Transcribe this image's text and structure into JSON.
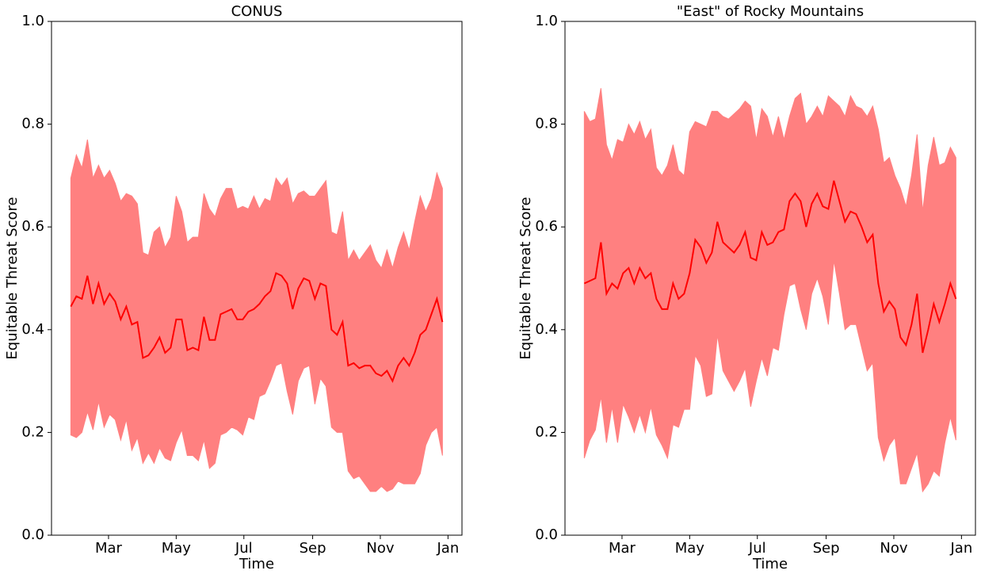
{
  "chart_data": [
    {
      "type": "line",
      "title": "CONUS",
      "xlabel": "Time",
      "ylabel": "Equitable Threat Score",
      "line_color": "#ff0000",
      "band_color": "#ff8080",
      "xlim": [
        8.6,
        378.6
      ],
      "ylim": [
        0,
        1
      ],
      "xticks": [
        {
          "value": 60,
          "label": "Mar"
        },
        {
          "value": 121,
          "label": "May"
        },
        {
          "value": 182,
          "label": "Jul"
        },
        {
          "value": 244,
          "label": "Sep"
        },
        {
          "value": 305,
          "label": "Nov"
        },
        {
          "value": 366,
          "label": "Jan"
        }
      ],
      "yticks": [
        {
          "value": 0,
          "label": "0.0"
        },
        0.2,
        0.4,
        0.6,
        0.8,
        {
          "value": 1,
          "label": "1.0"
        }
      ],
      "x": [
        26,
        31,
        36,
        41,
        46,
        51,
        56,
        61,
        66,
        71,
        76,
        81,
        86,
        91,
        96,
        101,
        106,
        111,
        116,
        121,
        126,
        131,
        136,
        141,
        146,
        151,
        156,
        161,
        166,
        171,
        176,
        181,
        186,
        191,
        196,
        201,
        206,
        211,
        216,
        221,
        226,
        231,
        236,
        241,
        246,
        251,
        256,
        261,
        266,
        271,
        276,
        281,
        286,
        291,
        296,
        301,
        306,
        311,
        316,
        321,
        326,
        331,
        336,
        341,
        346,
        351,
        356,
        361
      ],
      "values": [
        0.445,
        0.465,
        0.46,
        0.505,
        0.45,
        0.49,
        0.45,
        0.47,
        0.455,
        0.42,
        0.445,
        0.41,
        0.415,
        0.345,
        0.35,
        0.365,
        0.385,
        0.355,
        0.365,
        0.42,
        0.42,
        0.36,
        0.365,
        0.36,
        0.425,
        0.38,
        0.38,
        0.43,
        0.435,
        0.44,
        0.42,
        0.42,
        0.435,
        0.44,
        0.45,
        0.465,
        0.475,
        0.51,
        0.505,
        0.49,
        0.44,
        0.48,
        0.5,
        0.495,
        0.46,
        0.49,
        0.485,
        0.4,
        0.39,
        0.415,
        0.33,
        0.335,
        0.325,
        0.33,
        0.33,
        0.315,
        0.31,
        0.32,
        0.3,
        0.33,
        0.345,
        0.33,
        0.355,
        0.39,
        0.4,
        0.43,
        0.46,
        0.415
      ],
      "upper": [
        0.695,
        0.74,
        0.715,
        0.77,
        0.695,
        0.72,
        0.695,
        0.71,
        0.685,
        0.65,
        0.665,
        0.66,
        0.645,
        0.55,
        0.545,
        0.59,
        0.6,
        0.56,
        0.58,
        0.66,
        0.63,
        0.57,
        0.58,
        0.58,
        0.665,
        0.635,
        0.62,
        0.655,
        0.675,
        0.675,
        0.635,
        0.64,
        0.635,
        0.66,
        0.635,
        0.655,
        0.65,
        0.695,
        0.68,
        0.695,
        0.645,
        0.665,
        0.67,
        0.66,
        0.66,
        0.675,
        0.69,
        0.59,
        0.585,
        0.63,
        0.535,
        0.555,
        0.535,
        0.55,
        0.565,
        0.535,
        0.52,
        0.555,
        0.52,
        0.56,
        0.59,
        0.555,
        0.61,
        0.66,
        0.63,
        0.655,
        0.705,
        0.675
      ],
      "lower": [
        0.195,
        0.19,
        0.2,
        0.24,
        0.205,
        0.26,
        0.21,
        0.235,
        0.225,
        0.185,
        0.225,
        0.165,
        0.19,
        0.14,
        0.16,
        0.14,
        0.17,
        0.15,
        0.145,
        0.18,
        0.205,
        0.155,
        0.155,
        0.145,
        0.185,
        0.13,
        0.14,
        0.195,
        0.2,
        0.21,
        0.205,
        0.195,
        0.23,
        0.225,
        0.27,
        0.275,
        0.3,
        0.33,
        0.335,
        0.28,
        0.235,
        0.3,
        0.325,
        0.33,
        0.255,
        0.305,
        0.29,
        0.21,
        0.2,
        0.2,
        0.125,
        0.11,
        0.115,
        0.1,
        0.085,
        0.085,
        0.095,
        0.085,
        0.09,
        0.105,
        0.1,
        0.1,
        0.1,
        0.12,
        0.175,
        0.2,
        0.21,
        0.155
      ]
    },
    {
      "type": "line",
      "title": "\"East\" of Rocky Mountains",
      "xlabel": "Time",
      "ylabel": "Equitable Threat Score",
      "line_color": "#ff0000",
      "band_color": "#ff8080",
      "xlim": [
        8.6,
        378.6
      ],
      "ylim": [
        0,
        1
      ],
      "xticks": [
        {
          "value": 60,
          "label": "Mar"
        },
        {
          "value": 121,
          "label": "May"
        },
        {
          "value": 182,
          "label": "Jul"
        },
        {
          "value": 244,
          "label": "Sep"
        },
        {
          "value": 305,
          "label": "Nov"
        },
        {
          "value": 366,
          "label": "Jan"
        }
      ],
      "yticks": [
        {
          "value": 0,
          "label": "0.0"
        },
        0.2,
        0.4,
        0.6,
        0.8,
        {
          "value": 1,
          "label": "1.0"
        }
      ],
      "x": [
        26,
        31,
        36,
        41,
        46,
        51,
        56,
        61,
        66,
        71,
        76,
        81,
        86,
        91,
        96,
        101,
        106,
        111,
        116,
        121,
        126,
        131,
        136,
        141,
        146,
        151,
        156,
        161,
        166,
        171,
        176,
        181,
        186,
        191,
        196,
        201,
        206,
        211,
        216,
        221,
        226,
        231,
        236,
        241,
        246,
        251,
        256,
        261,
        266,
        271,
        276,
        281,
        286,
        291,
        296,
        301,
        306,
        311,
        316,
        321,
        326,
        331,
        336,
        341,
        346,
        351,
        356,
        361
      ],
      "values": [
        0.49,
        0.495,
        0.5,
        0.57,
        0.47,
        0.49,
        0.48,
        0.51,
        0.52,
        0.49,
        0.52,
        0.5,
        0.51,
        0.46,
        0.44,
        0.44,
        0.49,
        0.46,
        0.47,
        0.51,
        0.575,
        0.56,
        0.53,
        0.55,
        0.61,
        0.57,
        0.56,
        0.55,
        0.565,
        0.59,
        0.54,
        0.535,
        0.59,
        0.565,
        0.57,
        0.59,
        0.595,
        0.65,
        0.665,
        0.65,
        0.6,
        0.645,
        0.665,
        0.64,
        0.635,
        0.69,
        0.65,
        0.61,
        0.63,
        0.625,
        0.6,
        0.57,
        0.585,
        0.49,
        0.435,
        0.455,
        0.44,
        0.385,
        0.37,
        0.41,
        0.47,
        0.355,
        0.4,
        0.45,
        0.415,
        0.45,
        0.49,
        0.46
      ],
      "upper": [
        0.825,
        0.805,
        0.81,
        0.87,
        0.76,
        0.73,
        0.77,
        0.765,
        0.8,
        0.78,
        0.805,
        0.77,
        0.79,
        0.715,
        0.7,
        0.72,
        0.76,
        0.71,
        0.7,
        0.785,
        0.805,
        0.8,
        0.795,
        0.825,
        0.825,
        0.815,
        0.81,
        0.82,
        0.83,
        0.845,
        0.835,
        0.77,
        0.83,
        0.815,
        0.775,
        0.815,
        0.77,
        0.815,
        0.85,
        0.86,
        0.8,
        0.815,
        0.835,
        0.815,
        0.855,
        0.845,
        0.835,
        0.815,
        0.855,
        0.835,
        0.83,
        0.815,
        0.835,
        0.79,
        0.725,
        0.735,
        0.7,
        0.675,
        0.64,
        0.7,
        0.78,
        0.63,
        0.72,
        0.775,
        0.72,
        0.725,
        0.755,
        0.735
      ],
      "lower": [
        0.15,
        0.185,
        0.205,
        0.27,
        0.18,
        0.25,
        0.18,
        0.255,
        0.23,
        0.2,
        0.235,
        0.2,
        0.25,
        0.195,
        0.175,
        0.15,
        0.215,
        0.21,
        0.245,
        0.245,
        0.35,
        0.33,
        0.27,
        0.275,
        0.39,
        0.32,
        0.3,
        0.28,
        0.3,
        0.325,
        0.25,
        0.3,
        0.345,
        0.31,
        0.365,
        0.36,
        0.43,
        0.485,
        0.49,
        0.44,
        0.4,
        0.47,
        0.5,
        0.465,
        0.41,
        0.535,
        0.47,
        0.4,
        0.41,
        0.41,
        0.365,
        0.32,
        0.335,
        0.19,
        0.145,
        0.175,
        0.19,
        0.1,
        0.1,
        0.13,
        0.16,
        0.085,
        0.1,
        0.125,
        0.115,
        0.18,
        0.23,
        0.185
      ]
    }
  ]
}
